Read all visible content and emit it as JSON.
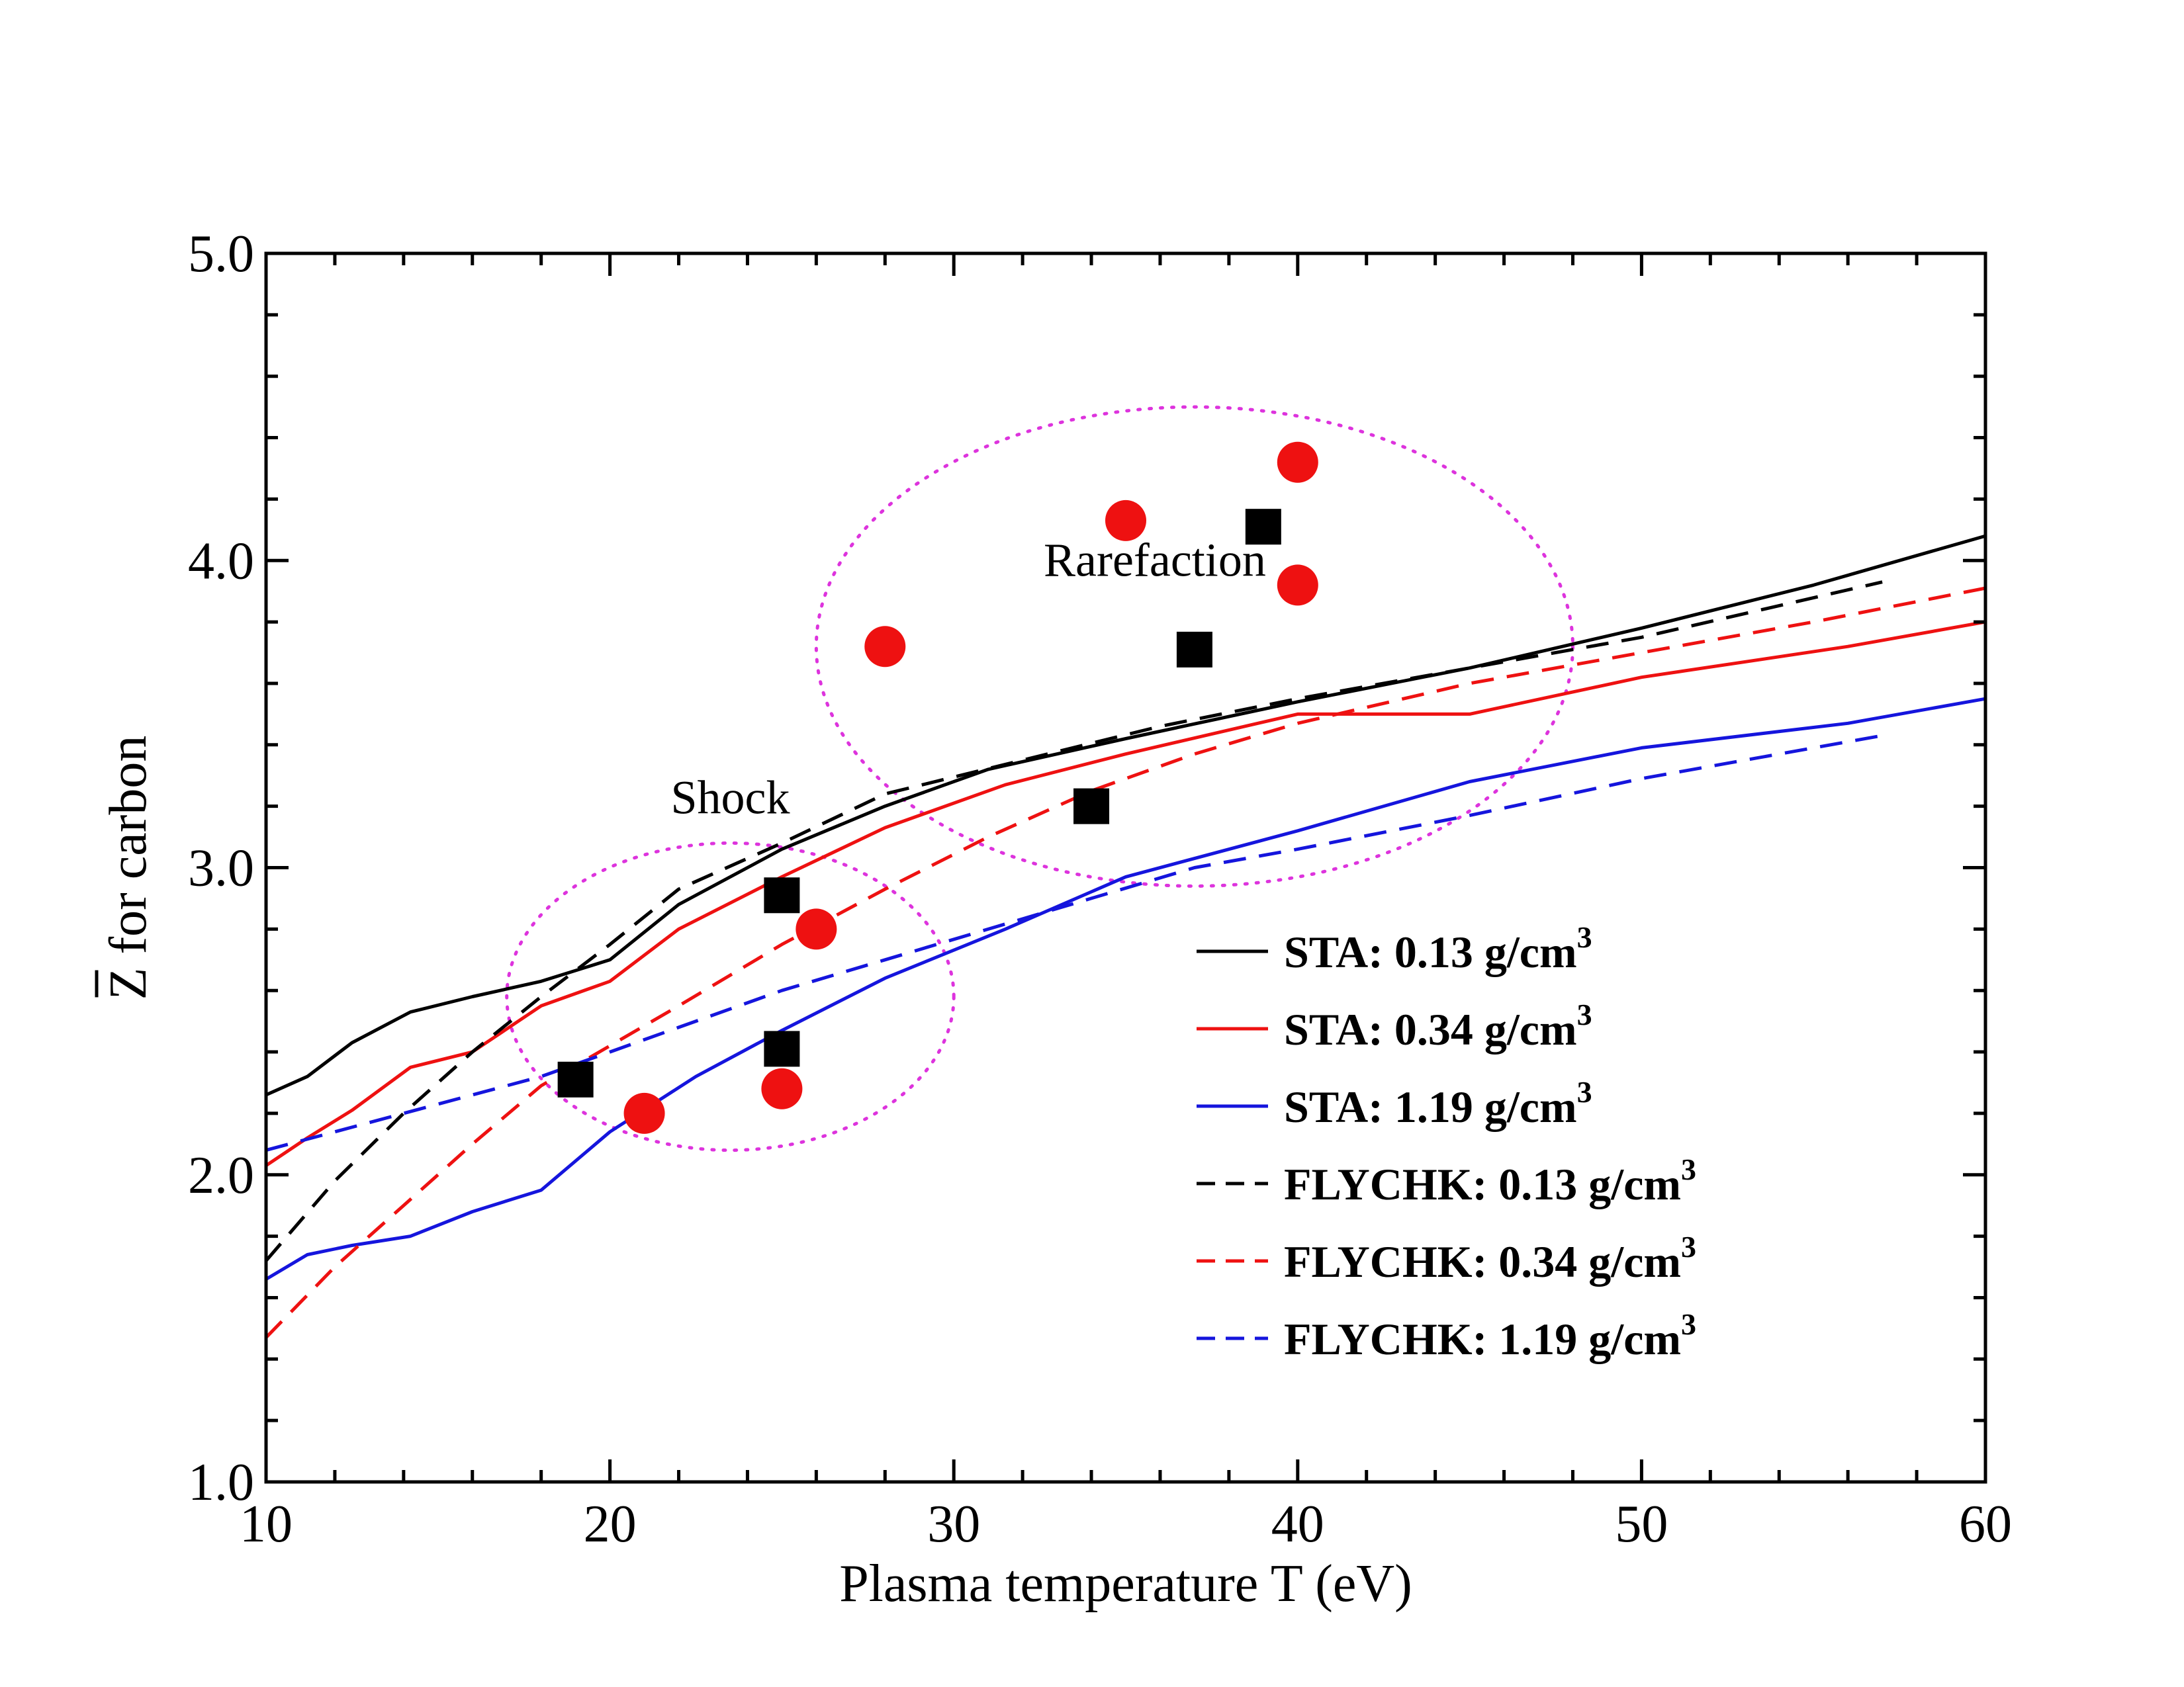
{
  "chart_data": {
    "type": "line",
    "title": "",
    "xlabel": "Plasma temperature T (eV)",
    "ylabel_overbar": "Z",
    "ylabel_rest": " for carbon",
    "xlim": [
      10,
      60
    ],
    "ylim": [
      1.0,
      5.0
    ],
    "xticks": [
      10,
      20,
      30,
      40,
      50,
      60
    ],
    "xtick_labels": [
      "10",
      "20",
      "30",
      "40",
      "50",
      "60"
    ],
    "yticks": [
      1.0,
      2.0,
      3.0,
      4.0,
      5.0
    ],
    "ytick_labels": [
      "1.0",
      "2.0",
      "3.0",
      "4.0",
      "5.0"
    ],
    "grid": false,
    "legend_position": "lower-right",
    "colors": {
      "black": "#000000",
      "red": "#ee1111",
      "blue": "#1515dd",
      "magenta": "#dd33dd"
    },
    "series": [
      {
        "name": "STA: 0.13 g/cm",
        "sup": "3",
        "color": "#000000",
        "dash": false,
        "x": [
          10,
          11.2,
          12.5,
          14.2,
          16,
          18,
          20,
          22,
          25,
          28,
          31,
          35,
          40,
          45,
          50,
          55,
          60
        ],
        "y": [
          2.26,
          2.32,
          2.43,
          2.53,
          2.58,
          2.63,
          2.7,
          2.88,
          3.06,
          3.2,
          3.32,
          3.42,
          3.54,
          3.65,
          3.78,
          3.92,
          4.08
        ]
      },
      {
        "name": "STA: 0.34 g/cm",
        "sup": "3",
        "color": "#ee1111",
        "dash": false,
        "x": [
          10,
          11.2,
          12.5,
          14.2,
          16,
          18,
          20,
          22,
          25,
          28,
          31.5,
          35,
          40,
          45,
          50,
          56,
          60
        ],
        "y": [
          2.03,
          2.12,
          2.21,
          2.35,
          2.4,
          2.55,
          2.63,
          2.8,
          2.97,
          3.13,
          3.27,
          3.37,
          3.5,
          3.5,
          3.62,
          3.72,
          3.8
        ]
      },
      {
        "name": "STA: 1.19 g/cm",
        "sup": "3",
        "color": "#1515dd",
        "dash": false,
        "x": [
          10,
          11.2,
          12.5,
          14.2,
          16,
          18,
          20,
          22.5,
          25,
          28,
          31.5,
          35,
          40,
          45,
          50,
          56,
          60
        ],
        "y": [
          1.66,
          1.74,
          1.77,
          1.8,
          1.88,
          1.95,
          2.14,
          2.32,
          2.47,
          2.64,
          2.8,
          2.97,
          3.12,
          3.28,
          3.39,
          3.47,
          3.55
        ]
      },
      {
        "name": "FLYCHK: 0.13 g/cm",
        "sup": "3",
        "color": "#000000",
        "dash": true,
        "x": [
          10,
          12,
          14,
          16,
          18,
          20,
          22,
          25,
          28,
          32,
          36,
          40,
          45,
          50,
          57
        ],
        "y": [
          1.72,
          1.98,
          2.2,
          2.4,
          2.58,
          2.75,
          2.93,
          3.08,
          3.24,
          3.35,
          3.46,
          3.55,
          3.65,
          3.75,
          3.93
        ]
      },
      {
        "name": "FLYCHK: 0.34 g/cm",
        "sup": "3",
        "color": "#ee1111",
        "dash": true,
        "x": [
          10,
          12,
          14,
          16,
          18,
          20,
          22,
          25,
          28,
          31,
          34,
          37,
          40,
          45,
          50,
          55,
          60
        ],
        "y": [
          1.47,
          1.7,
          1.9,
          2.1,
          2.29,
          2.42,
          2.55,
          2.75,
          2.93,
          3.1,
          3.25,
          3.37,
          3.47,
          3.6,
          3.7,
          3.8,
          3.91
        ]
      },
      {
        "name": "FLYCHK: 1.19 g/cm",
        "sup": "3",
        "color": "#1515dd",
        "dash": true,
        "x": [
          10,
          12,
          14,
          16,
          18,
          20,
          22,
          25,
          28,
          31,
          34,
          37,
          40,
          45,
          50,
          57
        ],
        "y": [
          2.08,
          2.14,
          2.2,
          2.26,
          2.32,
          2.4,
          2.48,
          2.6,
          2.7,
          2.8,
          2.9,
          3.0,
          3.06,
          3.17,
          3.29,
          3.43
        ]
      }
    ],
    "markers": [
      {
        "name": "square-points",
        "shape": "square",
        "color": "#000000",
        "points": [
          [
            19,
            2.31
          ],
          [
            25,
            2.91
          ],
          [
            25,
            2.41
          ],
          [
            34,
            3.2
          ],
          [
            37,
            3.71
          ],
          [
            39,
            4.11
          ]
        ]
      },
      {
        "name": "circle-points",
        "shape": "circle",
        "color": "#ee1111",
        "points": [
          [
            21,
            2.2
          ],
          [
            25,
            2.28
          ],
          [
            26,
            2.8
          ],
          [
            28,
            3.72
          ],
          [
            35,
            4.13
          ],
          [
            40,
            4.32
          ],
          [
            40,
            3.92
          ]
        ]
      }
    ],
    "regions": [
      {
        "label": "Shock",
        "center": [
          23.5,
          2.58
        ],
        "radii": [
          6.5,
          0.5
        ]
      },
      {
        "label": "Rarefaction",
        "center": [
          37.0,
          3.72
        ],
        "radii": [
          11.0,
          0.78
        ]
      }
    ]
  }
}
